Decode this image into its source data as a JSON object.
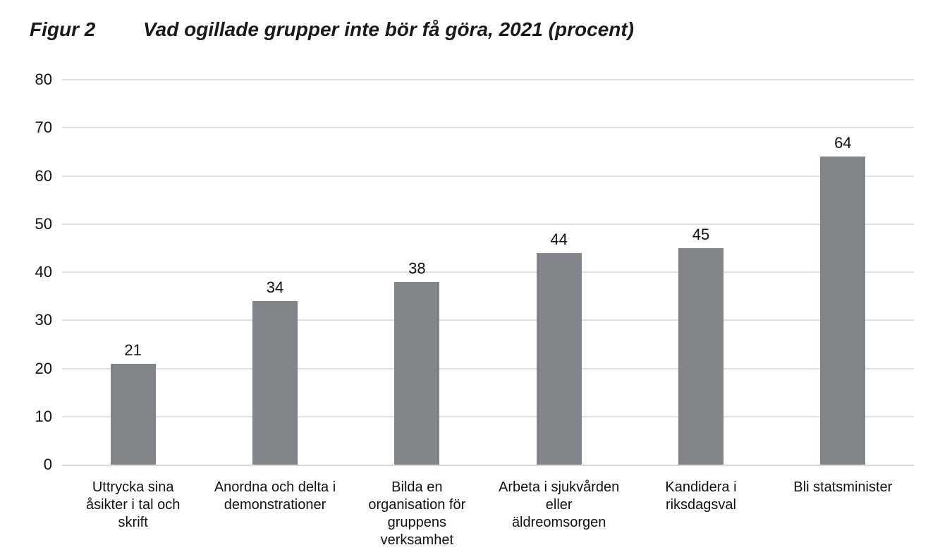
{
  "title": {
    "figure_label": "Figur 2",
    "text": "Vad ogillade grupper inte bör få göra, 2021 (procent)"
  },
  "chart_data": {
    "type": "bar",
    "title": "Vad ogillade grupper inte bör få göra, 2021 (procent)",
    "categories": [
      "Uttrycka sina åsikter i tal och skrift",
      "Anordna och delta i demonstrationer",
      "Bilda en organisation för gruppens verksamhet",
      "Arbeta i sjukvården eller äldreomsorgen",
      "Kandidera i riksdagsval",
      "Bli statsminister"
    ],
    "xtick_labels": [
      "Uttrycka sina\nåsikter i tal och\nskrift",
      "Anordna och delta i\ndemonstrationer",
      "Bilda en\norganisation för\ngruppens\nverksamhet",
      "Arbeta i sjukvården\neller\näldreomsorgen",
      "Kandidera i\nriksdagsval",
      "Bli statsminister"
    ],
    "values": [
      21,
      34,
      38,
      44,
      45,
      64
    ],
    "data_labels": [
      21,
      34,
      38,
      44,
      45,
      64
    ],
    "xlabel": "",
    "ylabel": "",
    "ylim": [
      0,
      80
    ],
    "yticks": [
      0,
      10,
      20,
      30,
      40,
      50,
      60,
      70,
      80
    ],
    "grid": true,
    "legend": "none",
    "bar_color": "#818589",
    "gridline_color": "#dedede",
    "label_color": "#111111"
  }
}
